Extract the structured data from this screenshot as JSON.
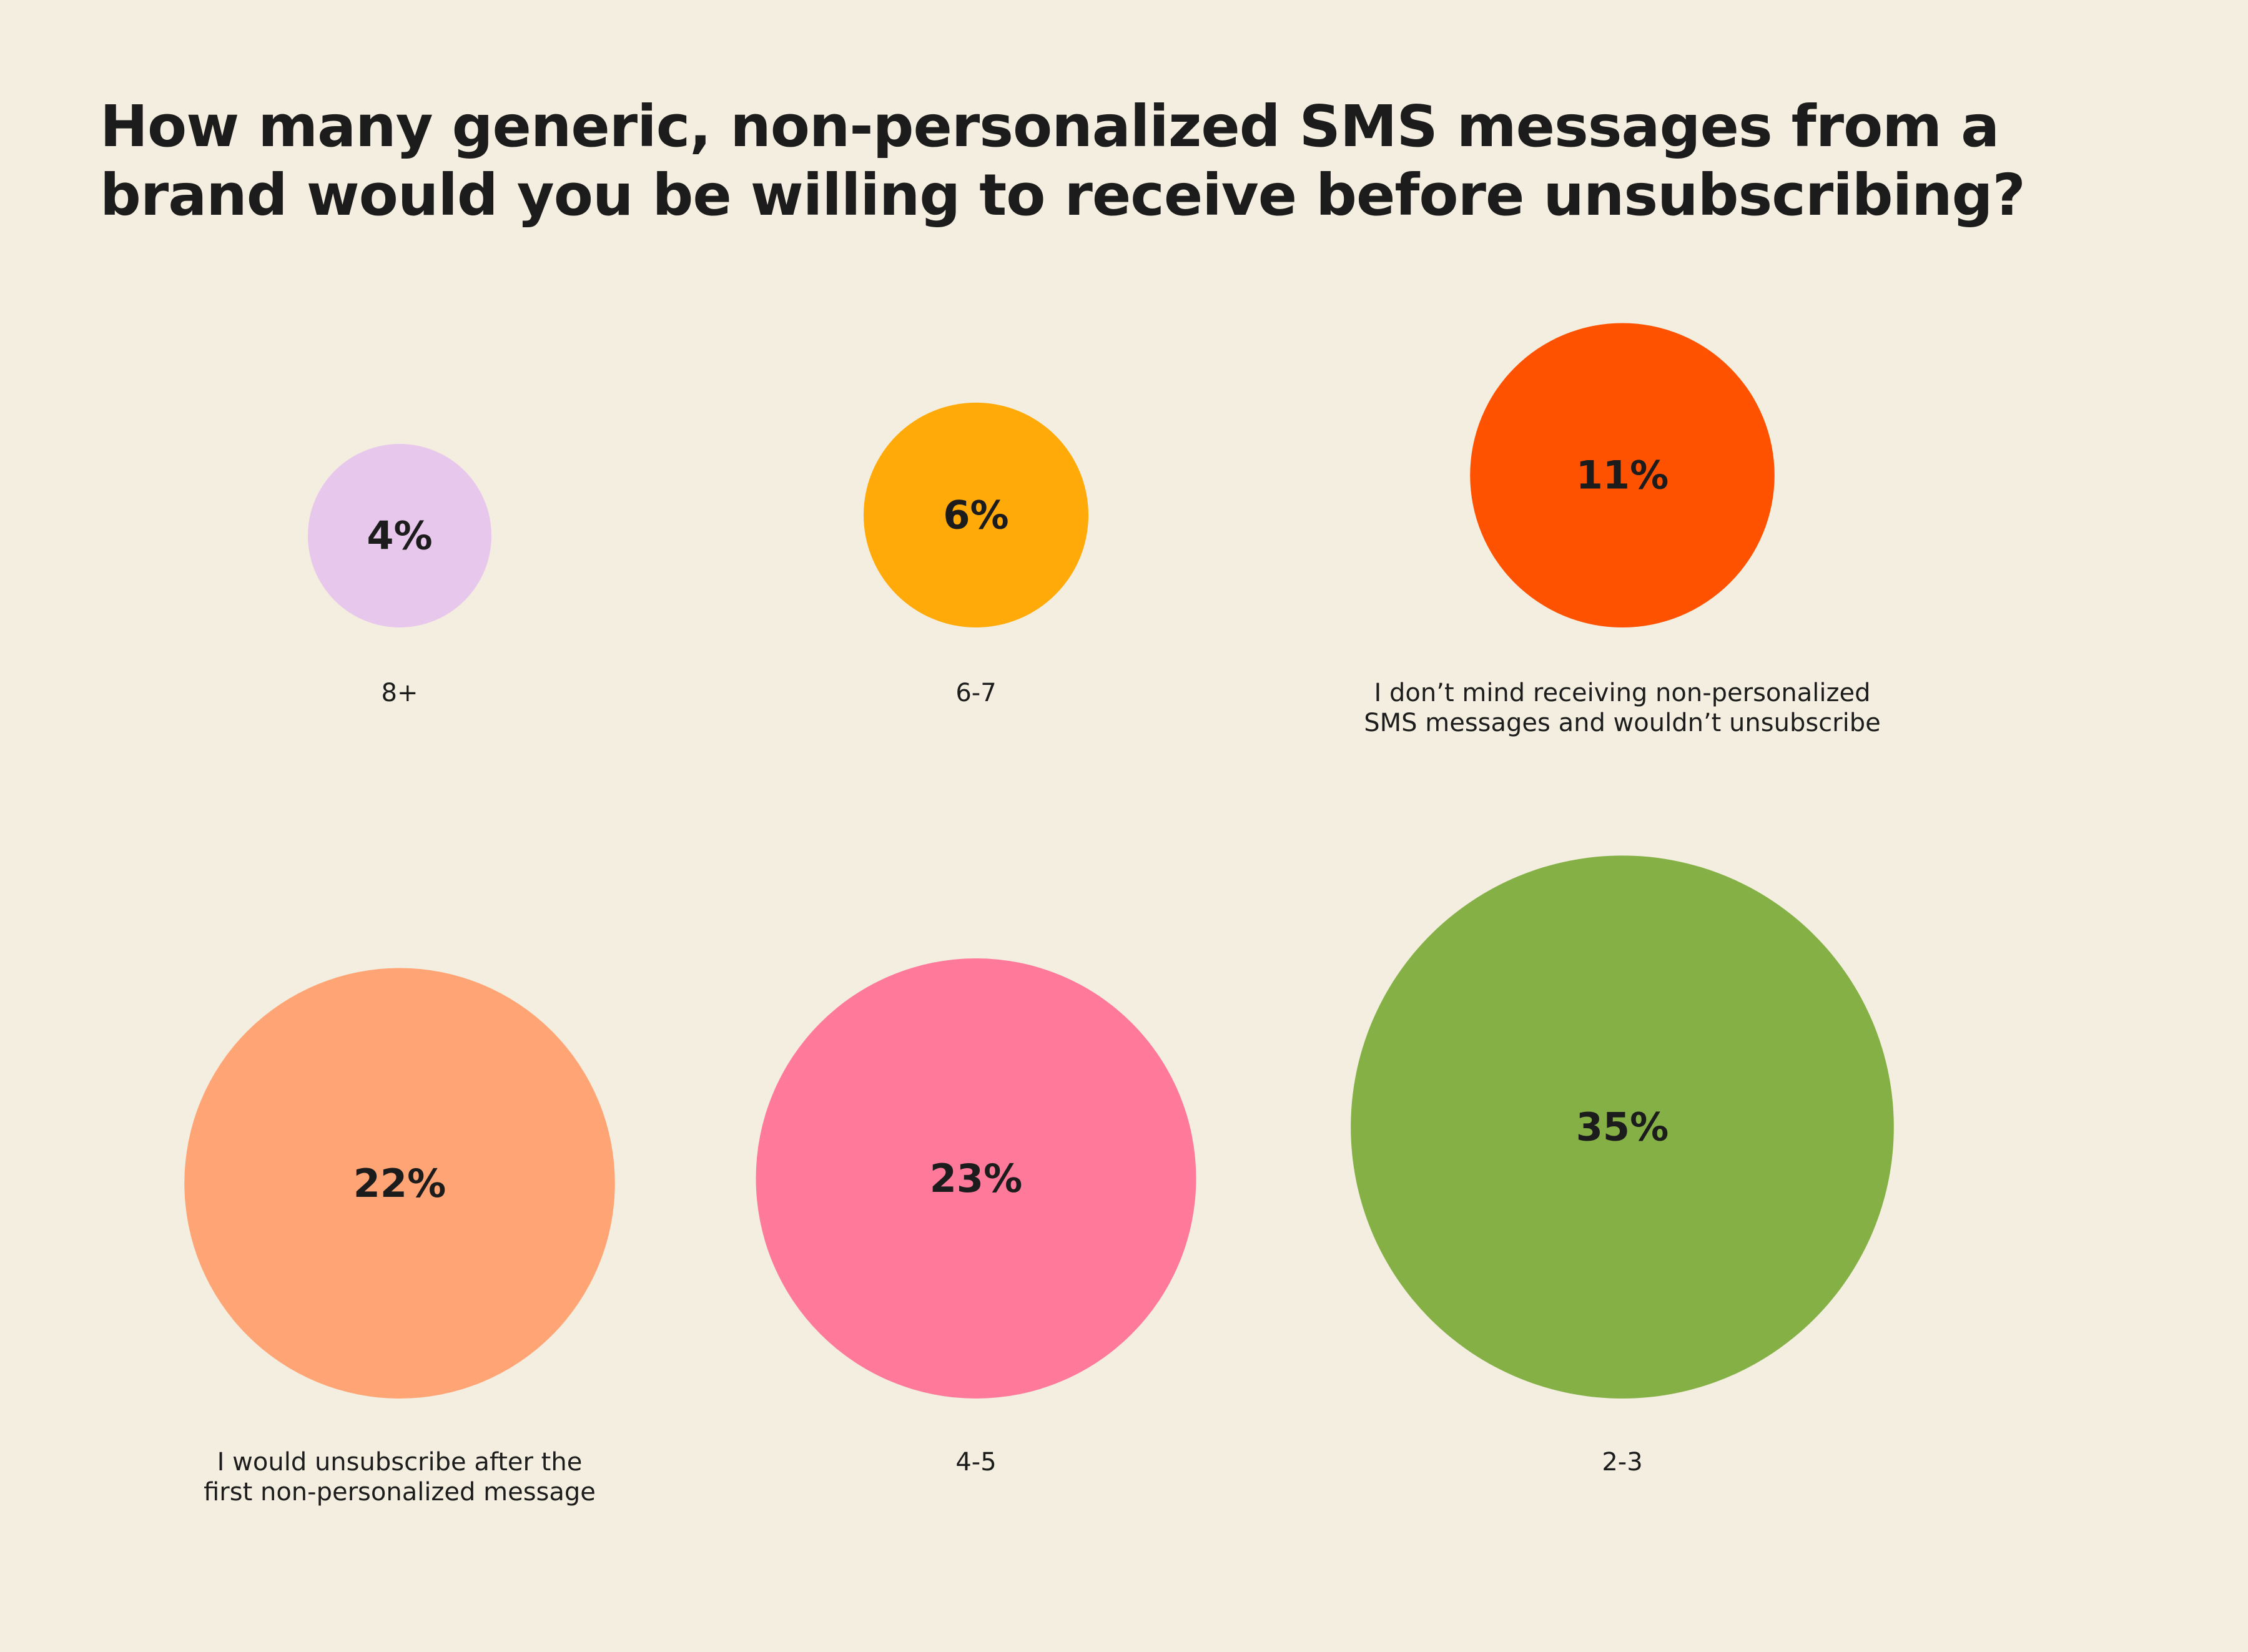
{
  "title": {
    "line1": "How many generic, non-personalized SMS messages from a",
    "line2": "brand would you be willing to receive before unsubscribing?"
  },
  "chart_data": {
    "type": "bubble",
    "title": "How many generic, non-personalized SMS messages from a brand would you be willing to receive before unsubscribing?",
    "unit": "%",
    "items": [
      {
        "category": "8+",
        "label_lines": [
          "8+"
        ],
        "value": 4,
        "display": "4%",
        "color": "#E8C7EC"
      },
      {
        "category": "6-7",
        "label_lines": [
          "6-7"
        ],
        "value": 6,
        "display": "6%",
        "color": "#FFAA08"
      },
      {
        "category": "I don’t mind receiving non-personalized SMS messages and wouldn’t unsubscribe",
        "label_lines": [
          "I don’t mind receiving non-personalized",
          "SMS messages and wouldn’t unsubscribe"
        ],
        "value": 11,
        "display": "11%",
        "color": "#FE5200"
      },
      {
        "category": "I would unsubscribe after the first non-personalized message",
        "label_lines": [
          "I would unsubscribe after the",
          "first non-personalized message"
        ],
        "value": 22,
        "display": "22%",
        "color": "#FFA475"
      },
      {
        "category": "4-5",
        "label_lines": [
          "4-5"
        ],
        "value": 23,
        "display": "23%",
        "color": "#FF7A9A"
      },
      {
        "category": "2-3",
        "label_lines": [
          "2-3"
        ],
        "value": 35,
        "display": "35%",
        "color": "#84B046"
      }
    ]
  }
}
